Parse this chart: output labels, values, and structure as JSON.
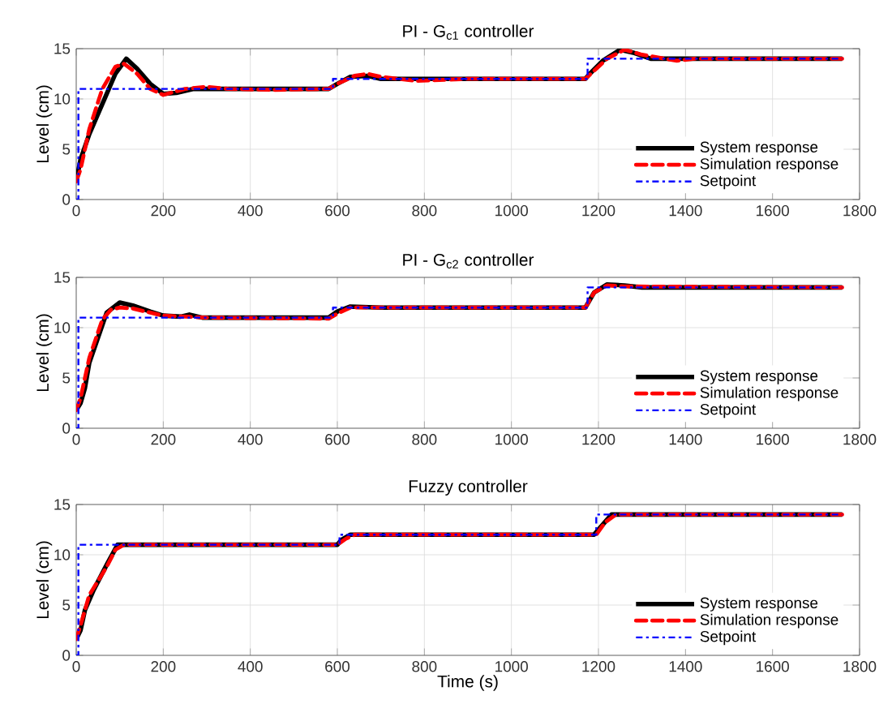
{
  "chart_data": [
    {
      "type": "line",
      "title": "PI - G$_{c1}$ controller",
      "ylabel": "Level (cm)",
      "xlim": [
        0,
        1800
      ],
      "ylim": [
        0,
        15
      ],
      "xticks": [
        0,
        200,
        400,
        600,
        800,
        1000,
        1200,
        1400,
        1600,
        1800
      ],
      "yticks": [
        0,
        5,
        10,
        15
      ],
      "grid": true,
      "legend": "bottom right",
      "series": [
        {
          "name": "System response",
          "color": "#000000",
          "line_style": "solid",
          "x": [
            0,
            10,
            30,
            60,
            90,
            115,
            140,
            170,
            200,
            230,
            270,
            400,
            580,
            600,
            630,
            670,
            700,
            1170,
            1180,
            1210,
            1250,
            1280,
            1320,
            1400,
            1760
          ],
          "values": [
            1.8,
            4,
            6.5,
            9.5,
            12.5,
            14,
            13,
            11.5,
            10.5,
            10.6,
            11,
            11,
            11,
            11.5,
            12.2,
            12.3,
            12,
            12,
            12.5,
            13.8,
            14.9,
            14.6,
            14,
            14,
            14
          ]
        },
        {
          "name": "Simulation response",
          "color": "#ff0000",
          "line_style": "dashed",
          "x": [
            0,
            10,
            30,
            60,
            90,
            110,
            140,
            170,
            200,
            250,
            300,
            350,
            450,
            580,
            600,
            640,
            670,
            700,
            780,
            900,
            1170,
            1180,
            1220,
            1260,
            1300,
            1380,
            1420,
            1760
          ],
          "values": [
            1.8,
            3,
            7,
            11,
            13.2,
            13.5,
            12.5,
            11,
            10.4,
            11,
            11.2,
            11,
            10.9,
            11,
            11.5,
            12.3,
            12.5,
            12.2,
            11.8,
            12,
            12,
            12.4,
            14,
            14.9,
            14.4,
            13.8,
            14,
            14
          ]
        },
        {
          "name": "Setpoint",
          "color": "#0000ff",
          "line_style": "dashdot",
          "x": [
            0,
            5,
            5,
            590,
            590,
            1175,
            1175,
            1760
          ],
          "values": [
            0,
            0,
            11,
            11,
            12,
            12,
            14,
            14
          ]
        }
      ]
    },
    {
      "type": "line",
      "title": "PI - G$_{c2}$ controller",
      "ylabel": "Level (cm)",
      "xlim": [
        0,
        1800
      ],
      "ylim": [
        0,
        15
      ],
      "xticks": [
        0,
        200,
        400,
        600,
        800,
        1000,
        1200,
        1400,
        1600,
        1800
      ],
      "yticks": [
        0,
        5,
        10,
        15
      ],
      "grid": true,
      "legend": "bottom right",
      "series": [
        {
          "name": "System response",
          "color": "#000000",
          "line_style": "solid",
          "x": [
            0,
            10,
            20,
            30,
            50,
            70,
            100,
            130,
            170,
            200,
            240,
            260,
            290,
            580,
            600,
            630,
            700,
            1170,
            1190,
            1220,
            1260,
            1300,
            1760
          ],
          "values": [
            1.8,
            2.5,
            4,
            6.5,
            9,
            11.5,
            12.5,
            12.2,
            11.6,
            11.2,
            11.1,
            11.3,
            11,
            11,
            11.6,
            12.1,
            12,
            12,
            13.5,
            14.3,
            14.2,
            14,
            14
          ]
        },
        {
          "name": "Simulation response",
          "color": "#ff0000",
          "line_style": "dashed",
          "x": [
            0,
            10,
            30,
            60,
            80,
            100,
            130,
            200,
            300,
            580,
            600,
            630,
            1170,
            1190,
            1220,
            1260,
            1760
          ],
          "values": [
            1.8,
            3,
            7,
            10.8,
            11.8,
            12,
            11.9,
            11.2,
            11,
            10.9,
            11.4,
            12,
            12,
            13.5,
            14.2,
            14.1,
            14
          ]
        },
        {
          "name": "Setpoint",
          "color": "#0000ff",
          "line_style": "dashdot",
          "x": [
            0,
            5,
            5,
            590,
            590,
            1175,
            1175,
            1760
          ],
          "values": [
            0,
            0,
            11,
            11,
            12,
            12,
            14,
            14
          ]
        }
      ]
    },
    {
      "type": "line",
      "title": "Fuzzy controller",
      "xlabel": "Time (s)",
      "ylabel": "Level (cm)",
      "xlim": [
        0,
        1800
      ],
      "ylim": [
        0,
        15
      ],
      "xticks": [
        0,
        200,
        400,
        600,
        800,
        1000,
        1200,
        1400,
        1600,
        1800
      ],
      "yticks": [
        0,
        5,
        10,
        15
      ],
      "grid": true,
      "legend": "bottom right",
      "series": [
        {
          "name": "System response",
          "color": "#000000",
          "line_style": "solid",
          "x": [
            0,
            10,
            20,
            40,
            70,
            95,
            600,
            610,
            630,
            1190,
            1210,
            1230,
            1760
          ],
          "values": [
            1.6,
            2.5,
            4.5,
            6.5,
            9,
            11,
            11,
            11.5,
            12,
            12,
            13,
            14,
            14
          ]
        },
        {
          "name": "Simulation response",
          "color": "#ff0000",
          "line_style": "dashed",
          "x": [
            0,
            10,
            30,
            70,
            90,
            110,
            600,
            620,
            640,
            1195,
            1215,
            1240,
            1760
          ],
          "values": [
            1.6,
            3,
            6,
            8.8,
            10.5,
            11,
            11,
            11.6,
            12,
            12,
            13.2,
            14,
            14
          ]
        },
        {
          "name": "Setpoint",
          "color": "#0000ff",
          "line_style": "dashdot",
          "x": [
            0,
            5,
            5,
            605,
            605,
            1195,
            1195,
            1760
          ],
          "values": [
            0,
            0,
            11,
            11,
            12,
            12,
            14,
            14
          ]
        }
      ]
    }
  ]
}
